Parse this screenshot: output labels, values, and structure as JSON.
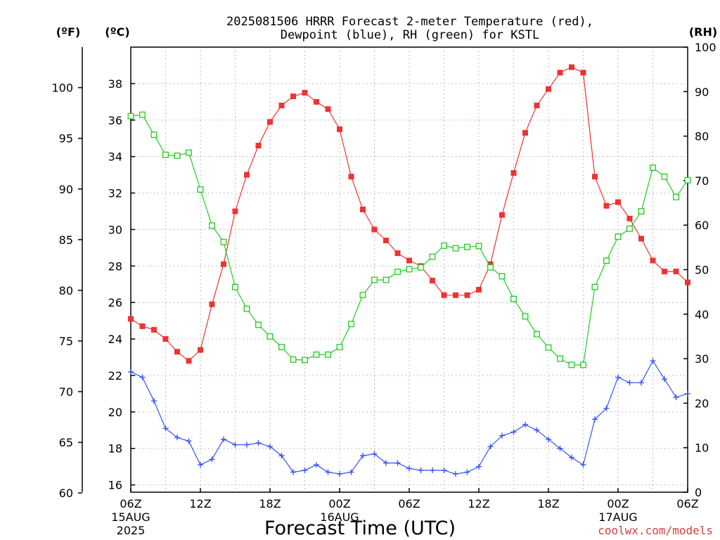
{
  "chart_data": {
    "type": "line",
    "title_line1": "2025081506 HRRR Forecast 2-meter Temperature (red),",
    "title_line2": "Dewpoint (blue), RH (green) for KSTL",
    "xlabel": "Forecast Time (UTC)",
    "credit": "coolwx.com/models",
    "left_outer_axis": {
      "unit": "(ºF)",
      "ticks": [
        60,
        65,
        70,
        75,
        80,
        85,
        90,
        95,
        100
      ]
    },
    "left_inner_axis": {
      "unit": "(ºC)",
      "ticks": [
        16,
        18,
        20,
        22,
        24,
        26,
        28,
        30,
        32,
        34,
        36,
        38
      ],
      "ylim": [
        15.6,
        40
      ]
    },
    "right_axis": {
      "unit": "(RH)",
      "ticks": [
        0,
        10,
        20,
        30,
        40,
        50,
        60,
        70,
        80,
        90,
        100
      ],
      "ylim": [
        0,
        100
      ]
    },
    "x_axis": {
      "range_hours": [
        0,
        48
      ],
      "ticks": [
        {
          "hour": 0,
          "label": "06Z",
          "sub1": "15AUG",
          "sub2": "2025"
        },
        {
          "hour": 6,
          "label": "12Z"
        },
        {
          "hour": 12,
          "label": "18Z"
        },
        {
          "hour": 18,
          "label": "00Z",
          "sub1": "16AUG"
        },
        {
          "hour": 24,
          "label": "06Z"
        },
        {
          "hour": 30,
          "label": "12Z"
        },
        {
          "hour": 36,
          "label": "18Z"
        },
        {
          "hour": 42,
          "label": "00Z",
          "sub1": "17AUG"
        },
        {
          "hour": 48,
          "label": "06Z"
        }
      ]
    },
    "grid": true,
    "series": [
      {
        "name": "Temperature",
        "unit": "°C",
        "color": "#ee3333",
        "marker": "filled-square",
        "values": [
          25.1,
          24.7,
          24.5,
          24.0,
          23.3,
          22.8,
          23.4,
          25.9,
          28.1,
          31.0,
          33.0,
          34.6,
          35.9,
          36.8,
          37.3,
          37.5,
          37.0,
          36.6,
          35.5,
          32.9,
          31.1,
          30.0,
          29.4,
          28.7,
          28.3,
          28.0,
          27.2,
          26.4,
          26.4,
          26.4,
          26.7,
          28.1,
          30.8,
          33.1,
          35.3,
          36.8,
          37.7,
          38.6,
          38.9,
          38.6,
          32.9,
          31.3,
          31.5,
          30.6,
          29.5,
          28.3,
          27.7,
          27.7,
          27.1
        ]
      },
      {
        "name": "Dewpoint",
        "unit": "°C",
        "color": "#3355ee",
        "marker": "plus",
        "values": [
          22.2,
          21.9,
          20.6,
          19.1,
          18.6,
          18.4,
          17.1,
          17.4,
          18.5,
          18.2,
          18.2,
          18.3,
          18.1,
          17.6,
          16.7,
          16.8,
          17.1,
          16.7,
          16.6,
          16.7,
          17.6,
          17.7,
          17.2,
          17.2,
          16.9,
          16.8,
          16.8,
          16.8,
          16.6,
          16.7,
          17.0,
          18.1,
          18.7,
          18.9,
          19.3,
          19.0,
          18.5,
          18.0,
          17.5,
          17.1,
          19.6,
          20.2,
          21.9,
          21.6,
          21.6,
          22.8,
          21.8,
          20.8,
          21.0
        ]
      },
      {
        "name": "RH",
        "unit": "%",
        "color": "#22cc22",
        "marker": "open-square",
        "values": [
          84.5,
          84.8,
          80.3,
          75.8,
          75.6,
          76.3,
          68.0,
          59.9,
          56.2,
          46.1,
          41.2,
          37.6,
          35.0,
          32.6,
          29.8,
          29.7,
          30.9,
          30.9,
          32.6,
          37.8,
          44.3,
          47.7,
          47.7,
          49.5,
          50.1,
          50.5,
          52.9,
          55.4,
          54.8,
          55.1,
          55.3,
          50.5,
          48.5,
          43.4,
          39.5,
          35.5,
          32.5,
          30.0,
          28.6,
          28.6,
          46.1,
          52.0,
          57.4,
          59.2,
          63.1,
          72.9,
          70.9,
          66.3,
          70.1
        ]
      }
    ]
  }
}
